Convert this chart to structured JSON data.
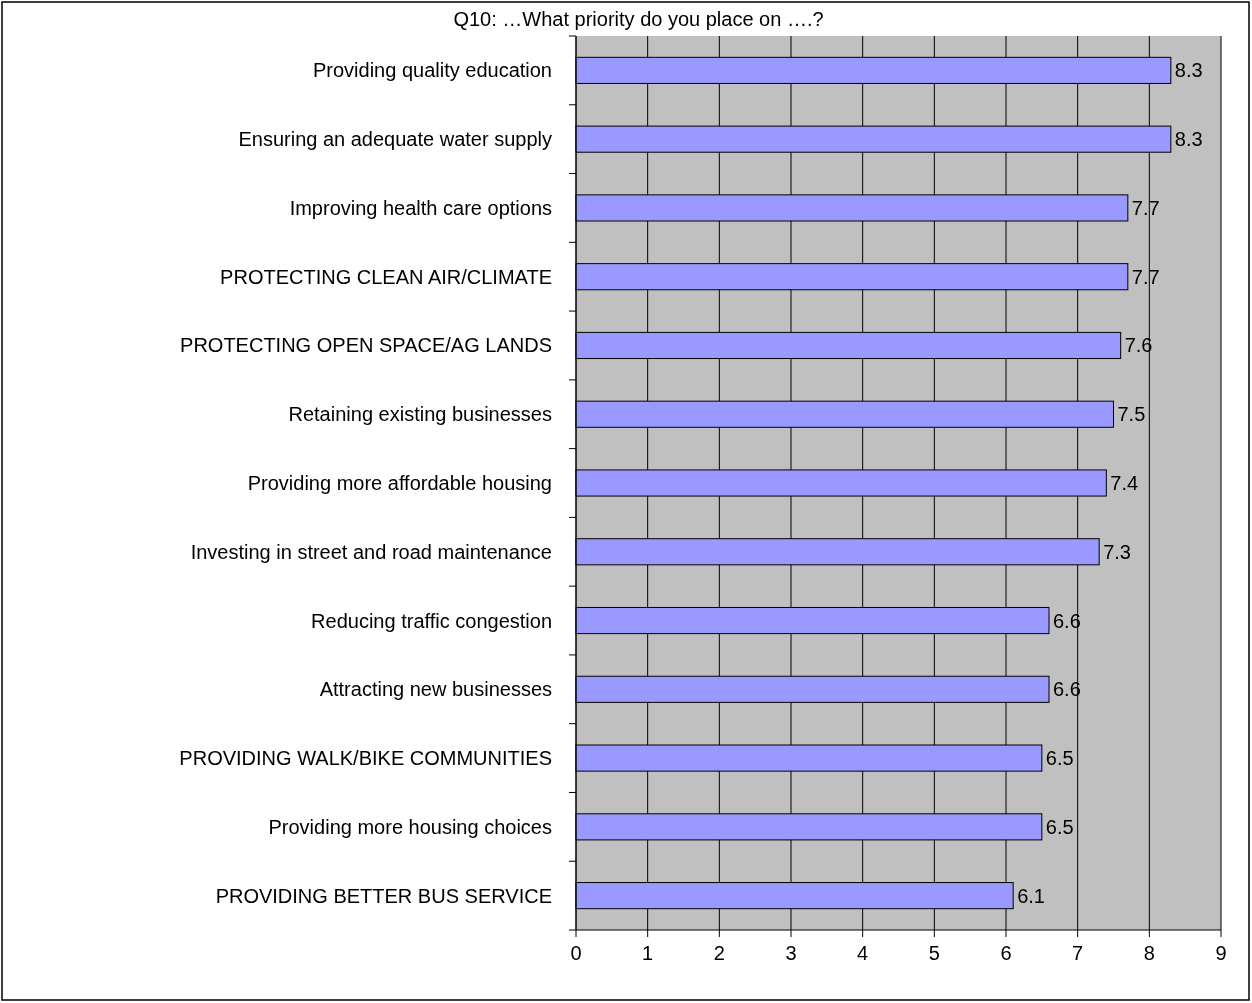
{
  "chart_data": {
    "type": "bar",
    "orientation": "horizontal",
    "title": "Q10:  …What priority do you place on ….?",
    "categories": [
      "Providing quality education",
      "Ensuring an adequate water supply",
      "Improving health care options",
      "PROTECTING CLEAN AIR/CLIMATE",
      "PROTECTING OPEN SPACE/AG LANDS",
      "Retaining existing businesses",
      "Providing more affordable housing",
      "Investing in street and road maintenance",
      "Reducing traffic congestion",
      "Attracting new businesses",
      "PROVIDING WALK/BIKE COMMUNITIES",
      "Providing more housing choices",
      "PROVIDING BETTER BUS SERVICE"
    ],
    "values": [
      8.3,
      8.3,
      7.7,
      7.7,
      7.6,
      7.5,
      7.4,
      7.3,
      6.6,
      6.6,
      6.5,
      6.5,
      6.1
    ],
    "color": "#9999ff",
    "xlim": [
      0,
      9
    ],
    "xticks": [
      0,
      1,
      2,
      3,
      4,
      5,
      6,
      7,
      8,
      9
    ],
    "grid": "x",
    "data_labels": true
  }
}
